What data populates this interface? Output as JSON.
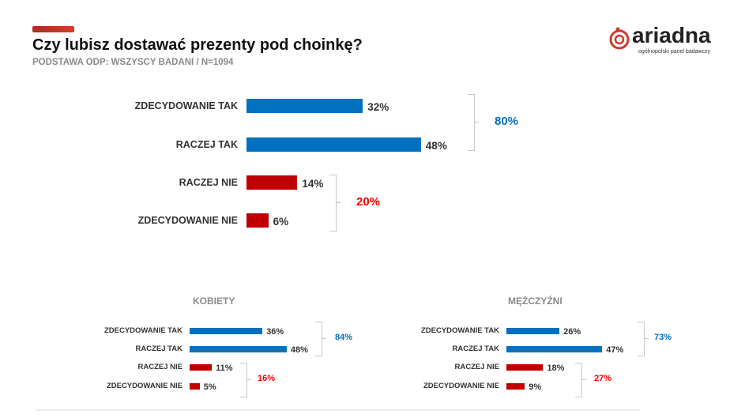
{
  "header": {
    "title": "Czy lubisz dostawać prezenty pod choinkę?",
    "subtitle": "PODSTAWA ODP: WSZYSCY BADANI / N=1094"
  },
  "logo": {
    "name": "ariadna",
    "tagline": "ogólnopolski panel badawczy"
  },
  "colors": {
    "yes": "#0070c0",
    "no": "#c00000",
    "sum_yes": "#0070c0",
    "sum_no": "#ff0000"
  },
  "chart_data": [
    {
      "type": "bar",
      "title": "",
      "categories": [
        "ZDECYDOWANIE TAK",
        "RACZEJ TAK",
        "RACZEJ NIE",
        "ZDECYDOWANIE NIE"
      ],
      "values": [
        32,
        48,
        14,
        6
      ],
      "labels": [
        "32%",
        "48%",
        "14%",
        "6%"
      ],
      "groups": [
        {
          "label": "80%",
          "value": 80
        },
        {
          "label": "20%",
          "value": 20
        }
      ],
      "xlim": [
        0,
        100
      ]
    },
    {
      "type": "bar",
      "title": "KOBIETY",
      "categories": [
        "ZDECYDOWANIE TAK",
        "RACZEJ TAK",
        "RACZEJ NIE",
        "ZDECYDOWANIE NIE"
      ],
      "values": [
        36,
        48,
        11,
        5
      ],
      "labels": [
        "36%",
        "48%",
        "11%",
        "5%"
      ],
      "groups": [
        {
          "label": "84%",
          "value": 84
        },
        {
          "label": "16%",
          "value": 16
        }
      ],
      "xlim": [
        0,
        100
      ]
    },
    {
      "type": "bar",
      "title": "MĘŻCZYŹNI",
      "categories": [
        "ZDECYDOWANIE TAK",
        "RACZEJ TAK",
        "RACZEJ NIE",
        "ZDECYDOWANIE NIE"
      ],
      "values": [
        26,
        47,
        18,
        9
      ],
      "labels": [
        "26%",
        "47%",
        "18%",
        "9%"
      ],
      "groups": [
        {
          "label": "73%",
          "value": 73
        },
        {
          "label": "27%",
          "value": 27
        }
      ],
      "xlim": [
        0,
        100
      ]
    }
  ]
}
